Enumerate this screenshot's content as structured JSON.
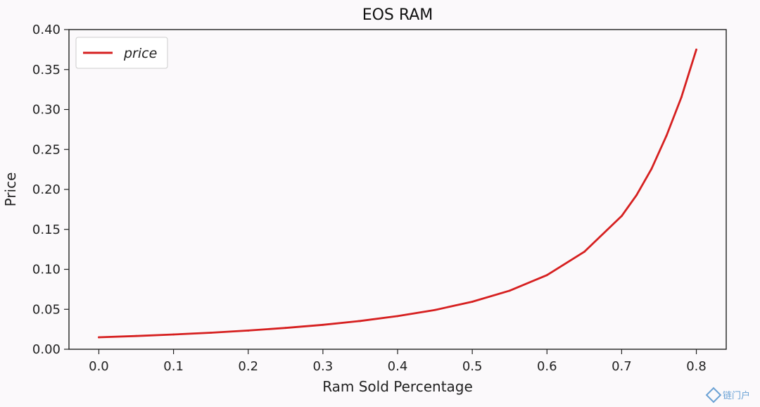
{
  "chart_data": {
    "type": "line",
    "title": "EOS RAM",
    "xlabel": "Ram Sold Percentage",
    "ylabel": "Price",
    "xlim": [
      -0.04,
      0.84
    ],
    "ylim": [
      0.0,
      0.4
    ],
    "xticks": [
      "0.0",
      "0.1",
      "0.2",
      "0.3",
      "0.4",
      "0.5",
      "0.6",
      "0.7",
      "0.8"
    ],
    "yticks": [
      "0.00",
      "0.05",
      "0.10",
      "0.15",
      "0.20",
      "0.25",
      "0.30",
      "0.35",
      "0.40"
    ],
    "grid": false,
    "legend_position": "top-left",
    "series": [
      {
        "name": "price",
        "color": "#d62020",
        "x": [
          0.0,
          0.05,
          0.1,
          0.15,
          0.2,
          0.25,
          0.3,
          0.35,
          0.4,
          0.45,
          0.5,
          0.55,
          0.6,
          0.65,
          0.7,
          0.72,
          0.74,
          0.76,
          0.78,
          0.8
        ],
        "y": [
          0.015,
          0.0166,
          0.0185,
          0.0207,
          0.0234,
          0.0267,
          0.0306,
          0.0354,
          0.0415,
          0.0492,
          0.0595,
          0.0733,
          0.0928,
          0.1219,
          0.1667,
          0.1929,
          0.2258,
          0.2672,
          0.3153,
          0.375
        ]
      }
    ]
  },
  "watermark": {
    "text": "链门户",
    "color": "#3a84c8"
  }
}
